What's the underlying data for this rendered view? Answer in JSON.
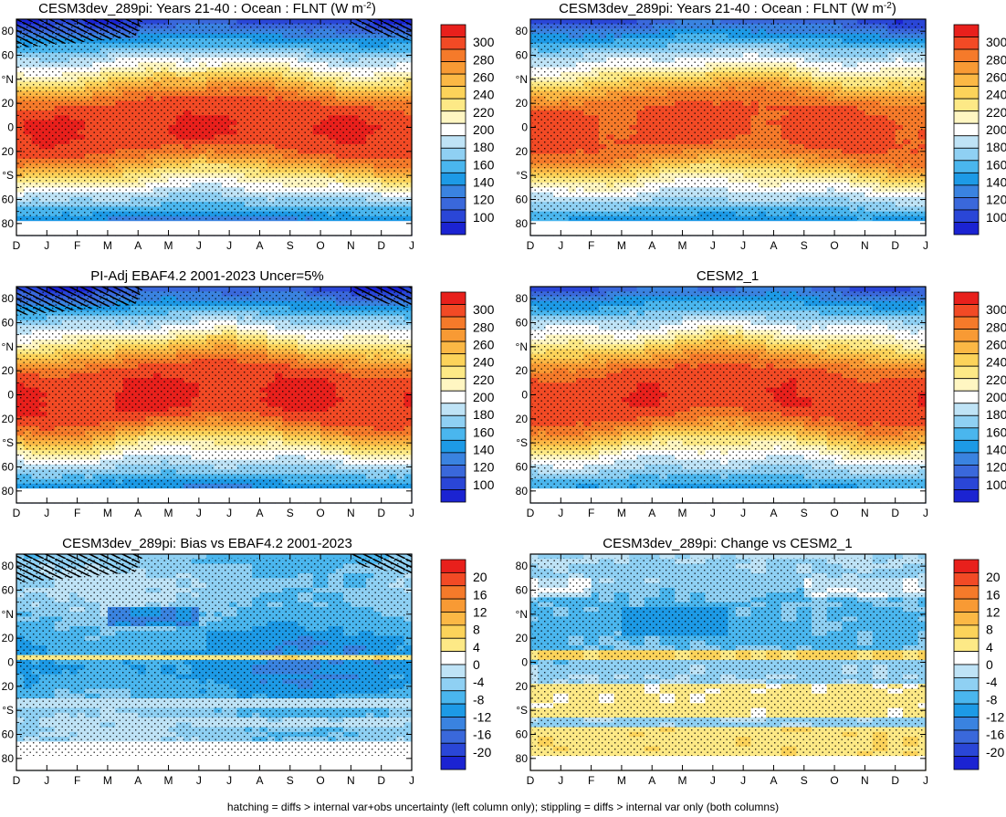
{
  "chart_data": [
    {
      "type": "heatmap",
      "title": "CESM3dev_289pi: Years 21-40 : Ocean : FLNT (W m",
      "title_sup": "-2",
      "title_end": ")",
      "x_ticks": [
        "D",
        "J",
        "F",
        "M",
        "A",
        "M",
        "J",
        "J",
        "A",
        "S",
        "O",
        "N",
        "D",
        "J"
      ],
      "y_ticks": [
        "80",
        "60",
        "°N",
        "20",
        "0",
        "20",
        "°S",
        "60",
        "80"
      ],
      "ylim": [
        -90,
        90
      ],
      "colorbar": {
        "levels": [
          "300",
          "280",
          "260",
          "240",
          "220",
          "200",
          "180",
          "160",
          "140",
          "120",
          "100"
        ]
      },
      "field": {
        "kind": "flnt",
        "equator_max": 290,
        "polar_min": 120,
        "zero_level": 200
      },
      "hatching": "north-high-latitudes",
      "stippling": "widespread"
    },
    {
      "type": "heatmap",
      "title": "CESM3dev_289pi: Years 21-40 : Ocean : FLNT (W m",
      "title_sup": "-2",
      "title_end": ")",
      "x_ticks": [
        "D",
        "J",
        "F",
        "M",
        "A",
        "M",
        "J",
        "J",
        "A",
        "S",
        "O",
        "N",
        "D",
        "J"
      ],
      "y_ticks": [
        "80",
        "60",
        "°N",
        "20",
        "0",
        "20",
        "°S",
        "60",
        "80"
      ],
      "ylim": [
        -90,
        90
      ],
      "colorbar": {
        "levels": [
          "300",
          "280",
          "260",
          "240",
          "220",
          "200",
          "180",
          "160",
          "140",
          "120",
          "100"
        ]
      },
      "field": {
        "kind": "flnt",
        "equator_max": 285,
        "polar_min": 130,
        "zero_level": 200
      },
      "hatching": "none",
      "stippling": "widespread"
    },
    {
      "type": "heatmap",
      "title": "PI-Adj EBAF4.2 2001-2023 Uncer=5%",
      "x_ticks": [
        "D",
        "J",
        "F",
        "M",
        "A",
        "M",
        "J",
        "J",
        "A",
        "S",
        "O",
        "N",
        "D",
        "J"
      ],
      "y_ticks": [
        "80",
        "60",
        "°N",
        "20",
        "0",
        "20",
        "°S",
        "60",
        "80"
      ],
      "ylim": [
        -90,
        90
      ],
      "colorbar": {
        "levels": [
          "300",
          "280",
          "260",
          "240",
          "220",
          "200",
          "180",
          "160",
          "140",
          "120",
          "100"
        ]
      },
      "field": {
        "kind": "flnt",
        "equator_max": 292,
        "polar_min": 125,
        "zero_level": 200
      },
      "hatching": "north-high-latitudes",
      "stippling": "widespread"
    },
    {
      "type": "heatmap",
      "title": "CESM2_1",
      "x_ticks": [
        "D",
        "J",
        "F",
        "M",
        "A",
        "M",
        "J",
        "J",
        "A",
        "S",
        "O",
        "N",
        "D",
        "J"
      ],
      "y_ticks": [
        "80",
        "60",
        "°N",
        "20",
        "0",
        "20",
        "°S",
        "60",
        "80"
      ],
      "ylim": [
        -90,
        90
      ],
      "colorbar": {
        "levels": [
          "300",
          "280",
          "260",
          "240",
          "220",
          "200",
          "180",
          "160",
          "140",
          "120",
          "100"
        ]
      },
      "field": {
        "kind": "flnt",
        "equator_max": 288,
        "polar_min": 135,
        "zero_level": 200
      },
      "hatching": "none",
      "stippling": "widespread"
    },
    {
      "type": "heatmap",
      "title": "CESM3dev_289pi: Bias vs EBAF4.2 2001-2023",
      "x_ticks": [
        "D",
        "J",
        "F",
        "M",
        "A",
        "M",
        "J",
        "J",
        "A",
        "S",
        "O",
        "N",
        "D",
        "J"
      ],
      "y_ticks": [
        "80",
        "60",
        "°N",
        "20",
        "0",
        "20",
        "°S",
        "60",
        "80"
      ],
      "ylim": [
        -90,
        90
      ],
      "colorbar": {
        "levels": [
          "20",
          "16",
          "12",
          "8",
          "4",
          "0",
          "-4",
          "-8",
          "-12",
          "-16",
          "-20"
        ]
      },
      "field": {
        "kind": "bias",
        "typical_min": -10,
        "typical_max": 6
      },
      "hatching": "north-high-latitudes",
      "stippling": "widespread"
    },
    {
      "type": "heatmap",
      "title": "CESM3dev_289pi: Change vs CESM2_1",
      "x_ticks": [
        "D",
        "J",
        "F",
        "M",
        "A",
        "M",
        "J",
        "J",
        "A",
        "S",
        "O",
        "N",
        "D",
        "J"
      ],
      "y_ticks": [
        "80",
        "60",
        "°N",
        "20",
        "0",
        "20",
        "°S",
        "60",
        "80"
      ],
      "ylim": [
        -90,
        90
      ],
      "colorbar": {
        "levels": [
          "20",
          "16",
          "12",
          "8",
          "4",
          "0",
          "-4",
          "-8",
          "-12",
          "-16",
          "-20"
        ]
      },
      "field": {
        "kind": "change",
        "typical_min": -8,
        "typical_max": 6
      },
      "hatching": "none",
      "stippling": "widespread"
    }
  ],
  "colors": {
    "abs_palette": [
      "#e8201c",
      "#f24a25",
      "#f57a2a",
      "#f89a34",
      "#fbb845",
      "#fcd35a",
      "#fde986",
      "#fff6c2",
      "#ffffff",
      "#bfe3f6",
      "#8fd0f3",
      "#4ab6ee",
      "#1d9ae6",
      "#3a83e0",
      "#3a68db",
      "#2a46d7",
      "#1b23d2"
    ],
    "diff_palette": [
      "#e8201c",
      "#f24a25",
      "#f57a2a",
      "#f89a34",
      "#fbb845",
      "#fcd35a",
      "#fde986",
      "#ffffff",
      "#bfe3f6",
      "#8fd0f3",
      "#4ab6ee",
      "#1d9ae6",
      "#3a83e0",
      "#3a68db",
      "#2a46d7",
      "#1b23d2"
    ]
  },
  "caption": "hatching = diffs > internal var+obs uncertainty (left column only); stippling = diffs > internal var only (both columns)"
}
